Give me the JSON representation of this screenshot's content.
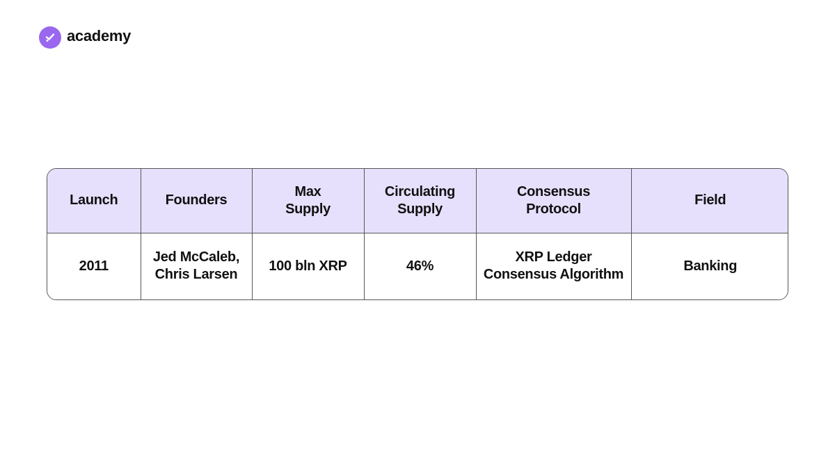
{
  "brand": {
    "name": "academy",
    "logo_icon": "checkmark-circle-icon",
    "accent_color": "#9a67ef"
  },
  "table": {
    "header_bg": "#e6e0fd",
    "headers": [
      [
        "Launch"
      ],
      [
        "Founders"
      ],
      [
        "Max",
        "Supply"
      ],
      [
        "Circulating",
        "Supply"
      ],
      [
        "Consensus",
        "Protocol"
      ],
      [
        "Field"
      ]
    ],
    "row": [
      [
        "2011"
      ],
      [
        "Jed McCaleb,",
        "Chris Larsen"
      ],
      [
        "100 bln XRP"
      ],
      [
        "46%"
      ],
      [
        "XRP Ledger",
        "Consensus Algorithm"
      ],
      [
        "Banking"
      ]
    ]
  }
}
